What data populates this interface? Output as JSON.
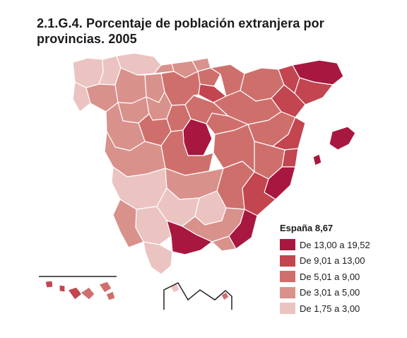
{
  "title": "2.1.G.4. Porcentaje de población extranjera por provincias. 2005",
  "legend": {
    "title": "España 8,67",
    "items": [
      {
        "label": "De 13,00 a 19,52",
        "color": "#a8173f"
      },
      {
        "label": "De 9,01 a 13,00",
        "color": "#c2454f"
      },
      {
        "label": "De 5,01 a 9,00",
        "color": "#cf6f6c"
      },
      {
        "label": "De 3,01 a 5,00",
        "color": "#d9918c"
      },
      {
        "label": "De 1,75 a 3,00",
        "color": "#ebc3c1"
      }
    ]
  },
  "colors": {
    "border": "#ffffff",
    "inset_line": "#222222"
  },
  "map_regions": {
    "class1": [
      "madrid",
      "girona",
      "alicante",
      "almeria",
      "malaga",
      "baleares",
      "ibiza"
    ],
    "class2": [
      "tarragona",
      "barcelona",
      "lleida-east",
      "murcia",
      "castellon",
      "la-rioja",
      "valencia-north",
      "canarias-west"
    ],
    "class3": [
      "navarra",
      "huesca",
      "zaragoza",
      "teruel",
      "guadalajara",
      "cuenca",
      "toledo",
      "segovia",
      "burgos",
      "soria",
      "alava",
      "valencia",
      "albacete",
      "avila",
      "canarias-east",
      "melilla"
    ],
    "class4": [
      "cantabria",
      "vizcaya",
      "palencia",
      "valladolid",
      "leon",
      "zamora",
      "salamanca",
      "caceres",
      "ciudad-real",
      "granada",
      "huelva",
      "almeria-west",
      "asturias-east",
      "ourense"
    ],
    "class5": [
      "a-coruna",
      "lugo",
      "pontevedra",
      "asturias",
      "badajoz",
      "cordoba",
      "jaen",
      "sevilla",
      "cadiz",
      "ceuta"
    ]
  }
}
